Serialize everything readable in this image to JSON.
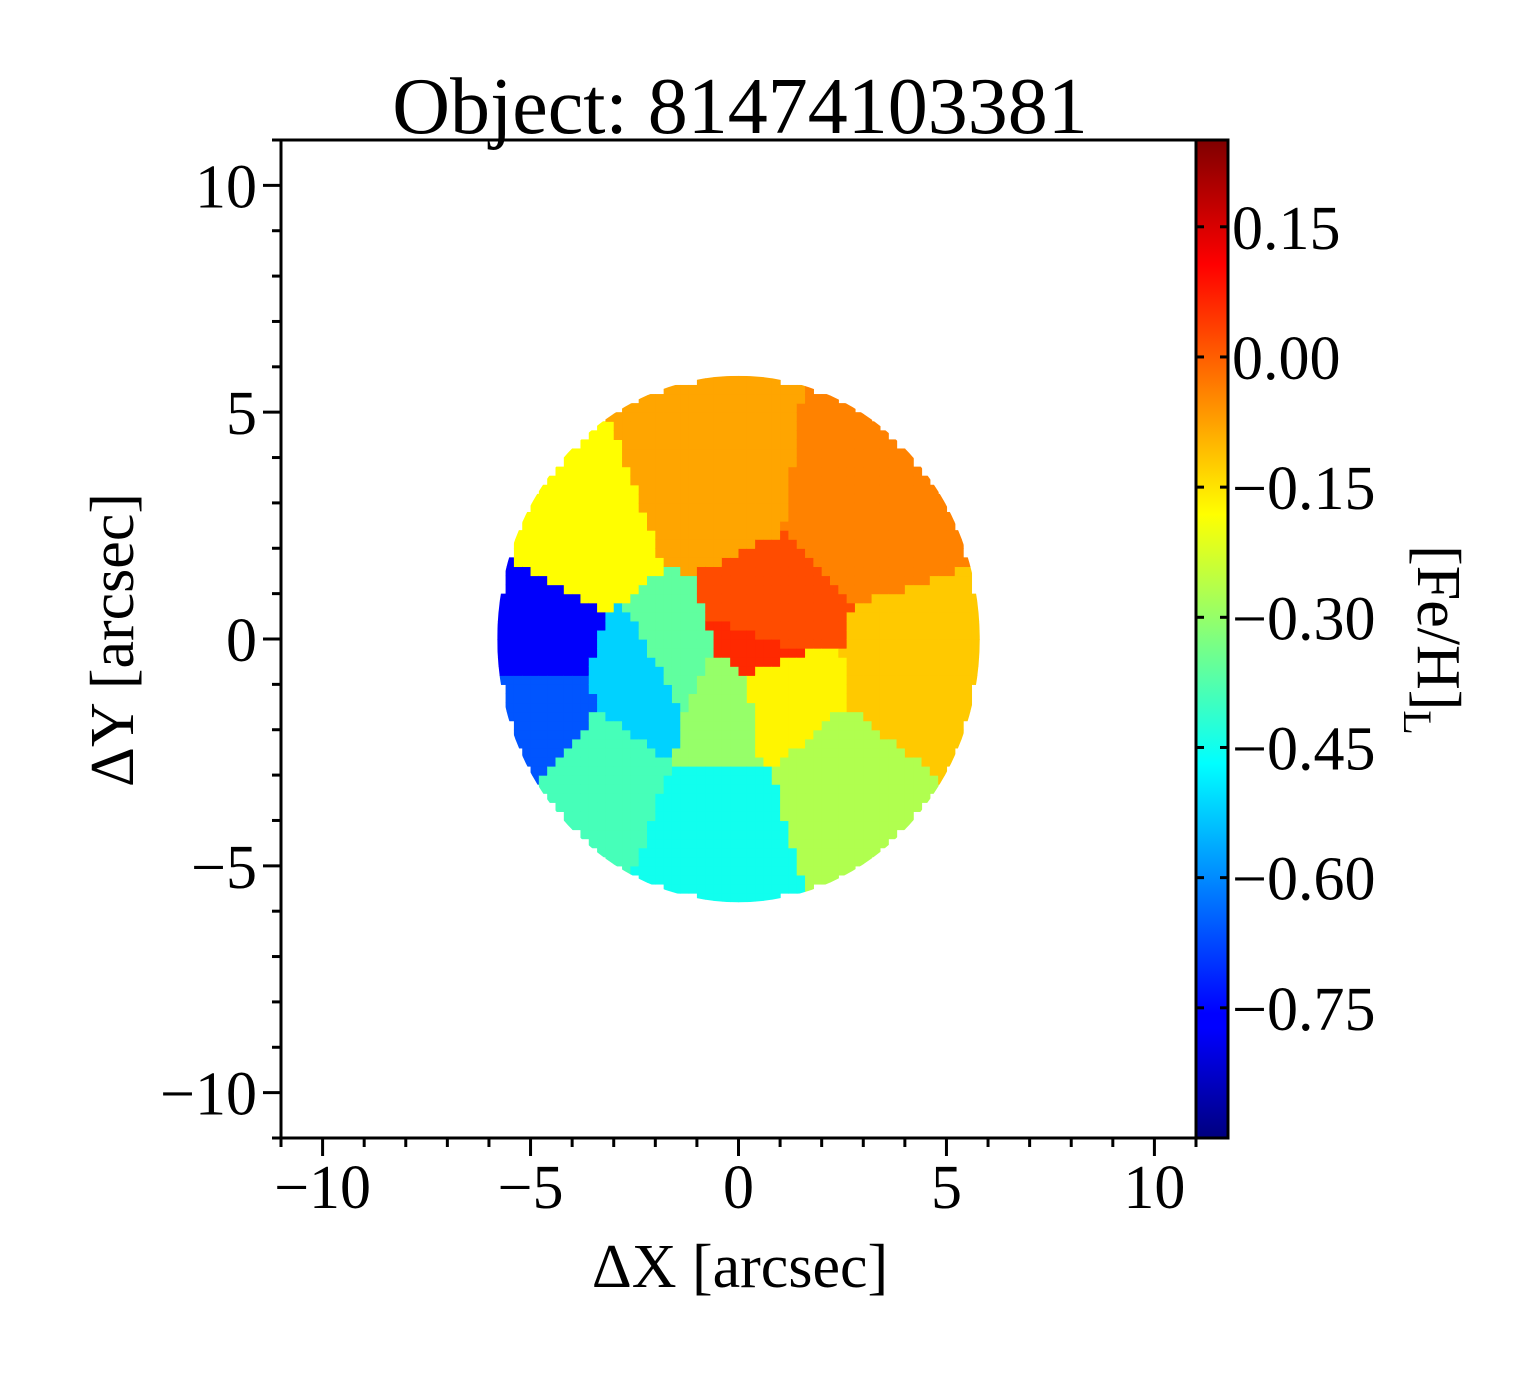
{
  "chart_data": {
    "type": "heatmap",
    "title": "Object: 81474103381",
    "xlabel": "ΔX [arcsec]",
    "ylabel": "ΔY [arcsec]",
    "xlim": [
      -11,
      11
    ],
    "ylim": [
      -11,
      11
    ],
    "xticks": [
      -10,
      -5,
      0,
      5,
      10
    ],
    "xtick_labels": [
      "−10",
      "−5",
      "0",
      "5",
      "10"
    ],
    "yticks": [
      10,
      5,
      0,
      -5,
      -10
    ],
    "ytick_labels": [
      "10",
      "5",
      "0",
      "−5",
      "−10"
    ],
    "colorbar": {
      "label_main": "[Fe/H]",
      "label_sub": "L",
      "range": [
        -0.9,
        0.25
      ],
      "colormap": "jet",
      "ticks": [
        0.15,
        0.0,
        -0.15,
        -0.3,
        -0.45,
        -0.6,
        -0.75
      ],
      "tick_labels": [
        "0.15",
        "0.00",
        "−0.15",
        "−0.30",
        "−0.45",
        "−0.60",
        "−0.75"
      ]
    },
    "map": {
      "center": [
        0.0,
        0.0
      ],
      "radius_arcsec": 5.8,
      "bins": [
        {
          "region": "north",
          "x": -0.8,
          "y": 3.5,
          "value": -0.08
        },
        {
          "region": "north-east",
          "x": 3.2,
          "y": 2.9,
          "value": -0.04
        },
        {
          "region": "east",
          "x": 4.3,
          "y": -0.8,
          "value": -0.12
        },
        {
          "region": "south-east",
          "x": 2.5,
          "y": -3.3,
          "value": -0.27
        },
        {
          "region": "south",
          "x": -0.4,
          "y": -4.2,
          "value": -0.45
        },
        {
          "region": "south-west",
          "x": -3.5,
          "y": -3.0,
          "value": -0.39
        },
        {
          "region": "north-west",
          "x": -3.8,
          "y": 2.3,
          "value": -0.18
        },
        {
          "region": "west-outer",
          "x": -4.9,
          "y": 0.1,
          "value": -0.76
        },
        {
          "region": "west-inner",
          "x": -4.8,
          "y": -1.8,
          "value": -0.66
        },
        {
          "region": "inner-west",
          "x": -1.6,
          "y": -0.6,
          "value": -0.36
        },
        {
          "region": "inner-south-west",
          "x": -2.1,
          "y": -0.9,
          "value": -0.52
        },
        {
          "region": "inner-south",
          "x": -0.3,
          "y": -1.3,
          "value": -0.3
        },
        {
          "region": "inner-south-east",
          "x": 0.8,
          "y": -1.1,
          "value": -0.17
        },
        {
          "region": "core",
          "x": 0.6,
          "y": 0.2,
          "value": 0.02
        },
        {
          "region": "nucleus",
          "x": 0.5,
          "y": -0.1,
          "value": 0.06
        }
      ]
    }
  }
}
